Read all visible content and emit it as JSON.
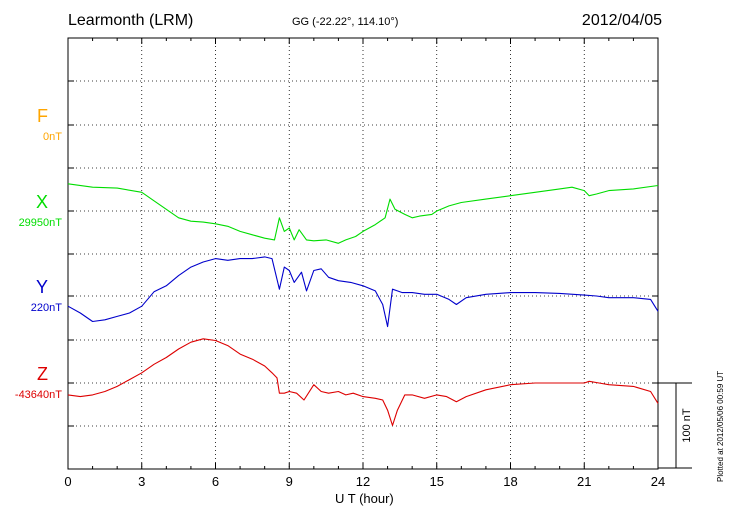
{
  "header": {
    "station": "Learmonth (LRM)",
    "coordinates": "GG (-22.22°, 114.10°)",
    "date": "2012/04/05"
  },
  "footer": "Plotted at 2012/05/06 00:59 UT",
  "chart_data": {
    "type": "line",
    "xlabel": "U T (hour)",
    "xlim": [
      0,
      24
    ],
    "xticks": [
      "0",
      "3",
      "6",
      "9",
      "12",
      "15",
      "18",
      "21",
      "24"
    ],
    "scale_bar": "100 nT",
    "grid": true,
    "series": [
      {
        "name": "F",
        "baseline": "0nT",
        "color": "#ffa500",
        "x": [],
        "values": []
      },
      {
        "name": "X",
        "baseline": "29950nT",
        "color": "#00dd00",
        "x": [
          0,
          1,
          2,
          3,
          3.5,
          4,
          4.5,
          5,
          5.5,
          6,
          6.5,
          7,
          7.5,
          8,
          8.4,
          8.6,
          8.8,
          9,
          9.2,
          9.4,
          9.7,
          10,
          10.5,
          11,
          11.3,
          11.7,
          12,
          12.5,
          12.9,
          13.1,
          13.3,
          13.7,
          14,
          14.3,
          14.8,
          15,
          15.5,
          16,
          17,
          18,
          19,
          20,
          20.5,
          21,
          21.2,
          21.5,
          22,
          23,
          24
        ],
        "values": [
          32,
          28,
          27,
          22,
          12,
          2,
          -8,
          -12,
          -13,
          -15,
          -18,
          -24,
          -28,
          -32,
          -34,
          -8,
          -24,
          -20,
          -34,
          -22,
          -34,
          -35,
          -34,
          -38,
          -34,
          -30,
          -24,
          -16,
          -8,
          14,
          2,
          -4,
          -8,
          -6,
          -4,
          0,
          6,
          10,
          14,
          18,
          22,
          26,
          28,
          24,
          18,
          20,
          24,
          26,
          30
        ]
      },
      {
        "name": "Y",
        "baseline": "220nT",
        "color": "#0000cc",
        "x": [
          0,
          0.5,
          1,
          1.5,
          2,
          2.5,
          3,
          3.5,
          4,
          4.5,
          5,
          5.5,
          6,
          6.5,
          7,
          7.5,
          8,
          8.3,
          8.6,
          8.8,
          9,
          9.2,
          9.5,
          9.7,
          10,
          10.3,
          10.6,
          11,
          11.5,
          12,
          12.5,
          12.8,
          13,
          13.2,
          13.4,
          13.6,
          14,
          14.5,
          15,
          15.5,
          15.8,
          16.2,
          17,
          18,
          19,
          20,
          21,
          21.5,
          22,
          23,
          23.7,
          24
        ],
        "values": [
          -12,
          -20,
          -30,
          -28,
          -24,
          -20,
          -12,
          5,
          12,
          24,
          34,
          40,
          44,
          42,
          44,
          44,
          46,
          44,
          8,
          34,
          30,
          16,
          28,
          6,
          30,
          32,
          22,
          18,
          16,
          12,
          6,
          -10,
          -36,
          8,
          6,
          4,
          4,
          2,
          2,
          -4,
          -10,
          -2,
          2,
          4,
          4,
          3,
          1,
          0,
          -2,
          -2,
          -4,
          -18
        ]
      },
      {
        "name": "Z",
        "baseline": "-43640nT",
        "color": "#dd0000",
        "x": [
          0,
          0.5,
          1,
          1.5,
          2,
          2.5,
          3,
          3.5,
          4,
          4.5,
          5,
          5.5,
          6,
          6.5,
          7,
          7.5,
          8,
          8.3,
          8.5,
          8.6,
          8.8,
          9,
          9.3,
          9.6,
          10,
          10.3,
          10.6,
          11,
          11.3,
          11.6,
          12,
          12.5,
          12.8,
          13,
          13.2,
          13.4,
          13.7,
          14,
          14.5,
          15,
          15.4,
          15.8,
          16.2,
          17,
          18,
          19,
          20,
          21,
          21.2,
          21.6,
          22,
          23,
          23.7,
          24
        ],
        "values": [
          -14,
          -16,
          -14,
          -10,
          -4,
          4,
          12,
          22,
          30,
          40,
          48,
          52,
          50,
          44,
          34,
          28,
          20,
          12,
          6,
          -12,
          -12,
          -10,
          -12,
          -20,
          -2,
          -10,
          -12,
          -10,
          -14,
          -12,
          -16,
          -18,
          -20,
          -32,
          -50,
          -32,
          -14,
          -14,
          -18,
          -14,
          -16,
          -22,
          -16,
          -8,
          -2,
          0,
          0,
          0,
          2,
          0,
          -2,
          -4,
          -10,
          -24
        ]
      }
    ]
  }
}
